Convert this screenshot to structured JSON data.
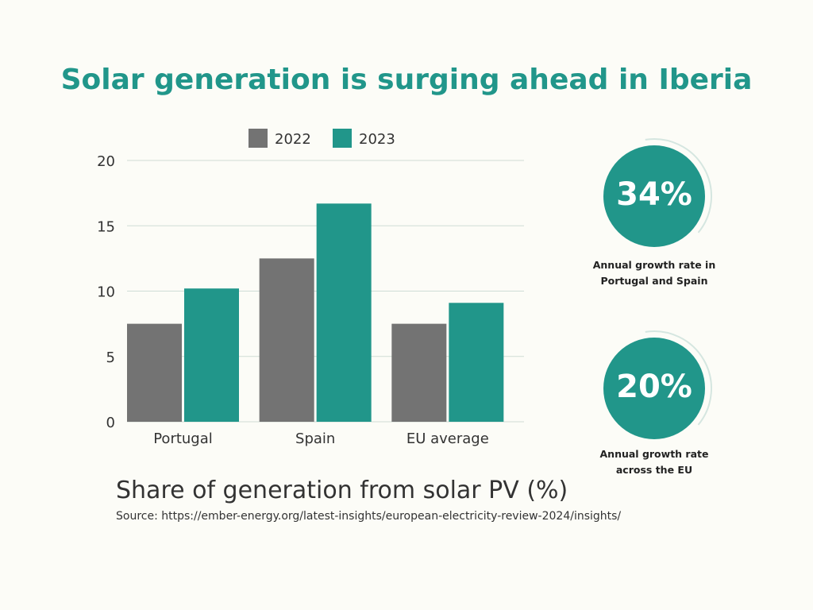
{
  "title": "Solar generation is surging ahead in Iberia",
  "chart_data": {
    "type": "bar",
    "categories": [
      "Portugal",
      "Spain",
      "EU average"
    ],
    "series": [
      {
        "name": "2022",
        "values": [
          7.5,
          12.5,
          7.5
        ],
        "color": "#737373"
      },
      {
        "name": "2023",
        "values": [
          10.2,
          16.7,
          9.1
        ],
        "color": "#21968a"
      }
    ],
    "ylim": [
      0,
      20
    ],
    "yticks": [
      0,
      5,
      10,
      15,
      20
    ],
    "grid": true,
    "legend": "top",
    "xlabel": "Share of generation from solar PV (%)",
    "ylabel": ""
  },
  "stats": [
    {
      "value": "34%",
      "label_line1": "Annual growth rate in",
      "label_line2": "Portugal and Spain"
    },
    {
      "value": "20%",
      "label_line1": "Annual growth rate",
      "label_line2": "across the EU"
    }
  ],
  "source": "Source: https://ember-energy.org/latest-insights/european-electricity-review-2024/insights/",
  "colors": {
    "accent": "#21968a",
    "gray": "#737373",
    "background": "#fcfcf7"
  }
}
